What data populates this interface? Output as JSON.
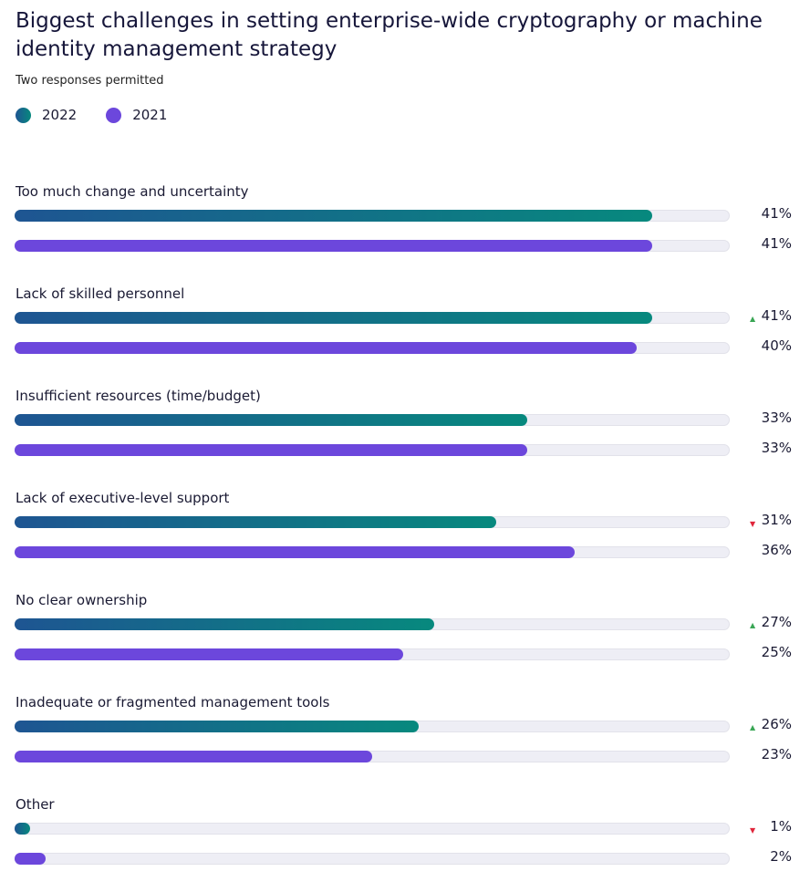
{
  "colors": {
    "y2022_start": "#1e5592",
    "y2022_end": "#07897e",
    "y2021": "#6c47dc",
    "up": "#3aa655",
    "down": "#e0263b",
    "track": "#eeeef5"
  },
  "chart_data": {
    "type": "bar",
    "title": "Biggest challenges in setting enterprise-wide cryptography or machine identity management strategy",
    "subtitle": "Two responses permitted",
    "legend": [
      {
        "name": "2022"
      },
      {
        "name": "2021"
      }
    ],
    "xlim": [
      0,
      46
    ],
    "categories": [
      "Too much change and uncertainty",
      "Lack of skilled personnel",
      "Insufficient resources (time/budget)",
      "Lack of executive-level support",
      "No clear ownership",
      "Inadequate or fragmented management tools",
      "Other"
    ],
    "series": [
      {
        "name": "2022",
        "values": [
          41,
          41,
          33,
          31,
          27,
          26,
          1
        ],
        "labels": [
          "41%",
          "41%",
          "33%",
          "31%",
          "27%",
          "26%",
          "1%"
        ],
        "trend": [
          "",
          "up",
          "",
          "down",
          "up",
          "up",
          "down"
        ]
      },
      {
        "name": "2021",
        "values": [
          41,
          40,
          33,
          36,
          25,
          23,
          2
        ],
        "labels": [
          "41%",
          "40%",
          "33%",
          "36%",
          "25%",
          "23%",
          "2%"
        ]
      }
    ]
  }
}
